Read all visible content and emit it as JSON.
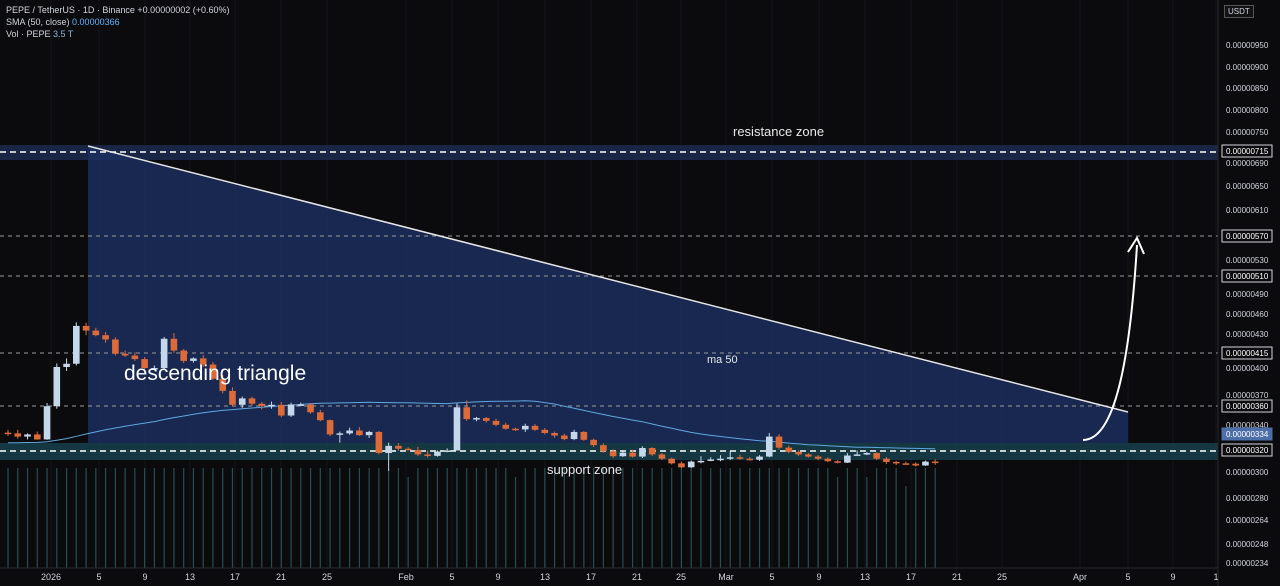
{
  "header": {
    "symbol": "PEPE / TetherUS · 1D · Binance",
    "change": "+0.00000002 (+0.60%)",
    "sma_label": "SMA (50, close)",
    "sma_value": "0.00000366",
    "vol_label": "Vol · PEPE",
    "vol_value": "3.5 T"
  },
  "currency": "USDT",
  "colors": {
    "background": "#0b0b0d",
    "up": "#c5d7ea",
    "down": "#dd6b3a",
    "triangle_fill": "#1c3160",
    "support_fill": "#163f4a",
    "sma": "#5fa8e0",
    "text": "#d1d4dc"
  },
  "annotations": {
    "resistance": "resistance zone",
    "support": "support zone",
    "pattern": "descending triangle",
    "ma": "ma 50"
  },
  "chart_data": {
    "type": "candlestick",
    "y_range": [
      3.3e-06,
      7.05e-06
    ],
    "price_ticks": [
      "0.00000950",
      "0.00000900",
      "0.00000850",
      "0.00000800",
      "0.00000750",
      "0.00000690",
      "0.00000650",
      "0.00000610",
      "0.00000530",
      "0.00000490",
      "0.00000460",
      "0.00000430",
      "0.00000400",
      "0.00000370",
      "0.00000340"
    ],
    "price_labels_boxed": [
      "0.00000715",
      "0.00000570",
      "0.00000510",
      "0.00000415",
      "0.00000360",
      "0.00000334",
      "0.00000320"
    ],
    "current_price": "0.00000334",
    "volume_ticks": [
      "0.00000300",
      "0.00000280",
      "0.00000264",
      "0.00000248",
      "0.00000234"
    ],
    "x_ticks": [
      "2026",
      "5",
      "9",
      "13",
      "17",
      "21",
      "25",
      "Feb",
      "5",
      "9",
      "13",
      "17",
      "21",
      "25",
      "Mar",
      "5",
      "9",
      "13",
      "17",
      "21",
      "25",
      "Apr",
      "5",
      "9",
      "1"
    ],
    "candles_ohlc": [
      [
        4.19e-06,
        4.27e-06,
        4.1e-06,
        4.17e-06
      ],
      [
        4.17e-06,
        4.27e-06,
        4.02e-06,
        4.08e-06
      ],
      [
        4.08e-06,
        4.17e-06,
        4e-06,
        4.14e-06
      ],
      [
        4.14e-06,
        4.22e-06,
        3.99e-06,
        4e-06
      ],
      [
        4e-06,
        5.02e-06,
        3.99e-06,
        4.93e-06
      ],
      [
        4.93e-06,
        6.13e-06,
        4.86e-06,
        6.03e-06
      ],
      [
        6.03e-06,
        6.27e-06,
        5.92e-06,
        6.12e-06
      ],
      [
        6.12e-06,
        7.28e-06,
        6.07e-06,
        7.18e-06
      ],
      [
        7.18e-06,
        7.27e-06,
        6.92e-06,
        7.05e-06
      ],
      [
        7.05e-06,
        7.13e-06,
        6.89e-06,
        6.92e-06
      ],
      [
        6.92e-06,
        7.01e-06,
        6.71e-06,
        6.8e-06
      ],
      [
        6.8e-06,
        6.86e-06,
        6.35e-06,
        6.4e-06
      ],
      [
        6.4e-06,
        6.49e-06,
        6.31e-06,
        6.35e-06
      ],
      [
        6.35e-06,
        6.44e-06,
        6.2e-06,
        6.25e-06
      ],
      [
        6.25e-06,
        6.31e-06,
        5.97e-06,
        6e-06
      ],
      [
        6e-06,
        6.07e-06,
        5.96e-06,
        6e-06
      ],
      [
        6e-06,
        6.87e-06,
        5.96e-06,
        6.82e-06
      ],
      [
        6.82e-06,
        6.98e-06,
        6.43e-06,
        6.49e-06
      ],
      [
        6.49e-06,
        6.53e-06,
        6.14e-06,
        6.2e-06
      ],
      [
        6.2e-06,
        6.3e-06,
        6.15e-06,
        6.27e-06
      ],
      [
        6.27e-06,
        6.36e-06,
        6.03e-06,
        6.1e-06
      ],
      [
        6.1e-06,
        6.17e-06,
        5.67e-06,
        5.7e-06
      ],
      [
        5.7e-06,
        5.8e-06,
        5.29e-06,
        5.36e-06
      ],
      [
        5.36e-06,
        5.46e-06,
        4.94e-06,
        4.97e-06
      ],
      [
        4.97e-06,
        5.2e-06,
        4.88e-06,
        5.15e-06
      ],
      [
        5.15e-06,
        5.2e-06,
        4.94e-06,
        5e-06
      ],
      [
        5e-06,
        5.05e-06,
        4.84e-06,
        4.94e-06
      ],
      [
        4.94e-06,
        5.06e-06,
        4.86e-06,
        4.97e-06
      ],
      [
        4.97e-06,
        5.05e-06,
        4.62e-06,
        4.67e-06
      ],
      [
        4.67e-06,
        5.03e-06,
        4.63e-06,
        4.98e-06
      ],
      [
        4.98e-06,
        5.03e-06,
        4.93e-06,
        4.98e-06
      ],
      [
        4.98e-06,
        5.02e-06,
        4.72e-06,
        4.76e-06
      ],
      [
        4.76e-06,
        4.83e-06,
        4.51e-06,
        4.54e-06
      ],
      [
        4.54e-06,
        4.56e-06,
        4.09e-06,
        4.14e-06
      ],
      [
        4.14e-06,
        4.22e-06,
        3.91e-06,
        4.17e-06
      ],
      [
        4.17e-06,
        4.33e-06,
        4.13e-06,
        4.25e-06
      ],
      [
        4.25e-06,
        4.35e-06,
        4.1e-06,
        4.12e-06
      ],
      [
        4.12e-06,
        4.24e-06,
        4.04e-06,
        4.21e-06
      ],
      [
        4.21e-06,
        4.24e-06,
        3.58e-06,
        3.62e-06
      ],
      [
        3.62e-06,
        3.91e-06,
        3.12e-06,
        3.82e-06
      ],
      [
        3.82e-06,
        3.9e-06,
        3.68e-06,
        3.74e-06
      ],
      [
        3.74e-06,
        3.78e-06,
        3.69e-06,
        3.7e-06
      ],
      [
        3.7e-06,
        3.79e-06,
        3.54e-06,
        3.58e-06
      ],
      [
        3.58e-06,
        3.69e-06,
        3.49e-06,
        3.54e-06
      ],
      [
        3.54e-06,
        3.69e-06,
        3.52e-06,
        3.66e-06
      ],
      [
        3.66e-06,
        3.75e-06,
        3.64e-06,
        3.69e-06
      ],
      [
        3.69e-06,
        5.01e-06,
        3.69e-06,
        4.9e-06
      ],
      [
        4.9e-06,
        5.09e-06,
        4.52e-06,
        4.57e-06
      ],
      [
        4.57e-06,
        4.63e-06,
        4.51e-06,
        4.6e-06
      ],
      [
        4.6e-06,
        4.63e-06,
        4.47e-06,
        4.52e-06
      ],
      [
        4.52e-06,
        4.58e-06,
        4.37e-06,
        4.41e-06
      ],
      [
        4.41e-06,
        4.47e-06,
        4.27e-06,
        4.3e-06
      ],
      [
        4.3e-06,
        4.33e-06,
        4.24e-06,
        4.28e-06
      ],
      [
        4.28e-06,
        4.44e-06,
        4.21e-06,
        4.38e-06
      ],
      [
        4.38e-06,
        4.43e-06,
        4.24e-06,
        4.27e-06
      ],
      [
        4.27e-06,
        4.32e-06,
        4.14e-06,
        4.18e-06
      ],
      [
        4.18e-06,
        4.22e-06,
        4.05e-06,
        4.11e-06
      ],
      [
        4.11e-06,
        4.16e-06,
        3.98e-06,
        4.01e-06
      ],
      [
        4.01e-06,
        4.27e-06,
        3.98e-06,
        4.21e-06
      ],
      [
        4.21e-06,
        4.23e-06,
        3.96e-06,
        3.99e-06
      ],
      [
        3.99e-06,
        4.02e-06,
        3.79e-06,
        3.84e-06
      ],
      [
        3.84e-06,
        3.89e-06,
        3.63e-06,
        3.67e-06
      ],
      [
        3.67e-06,
        3.72e-06,
        3.48e-06,
        3.53e-06
      ],
      [
        3.53e-06,
        3.66e-06,
        3.51e-06,
        3.63e-06
      ],
      [
        3.63e-06,
        3.71e-06,
        3.49e-06,
        3.52e-06
      ],
      [
        3.52e-06,
        3.81e-06,
        3.48e-06,
        3.76e-06
      ],
      [
        3.76e-06,
        3.78e-06,
        3.54e-06,
        3.58e-06
      ],
      [
        3.58e-06,
        3.62e-06,
        3.42e-06,
        3.46e-06
      ],
      [
        3.46e-06,
        3.49e-06,
        3.3e-06,
        3.33e-06
      ],
      [
        3.33e-06,
        3.38e-06,
        3.2e-06,
        3.22e-06
      ],
      [
        3.22e-06,
        3.41e-06,
        3.2e-06,
        3.38e-06
      ],
      [
        3.38e-06,
        3.53e-06,
        3.33e-06,
        3.4e-06
      ],
      [
        3.4e-06,
        3.5e-06,
        3.39e-06,
        3.44e-06
      ],
      [
        3.44e-06,
        3.56e-06,
        3.39e-06,
        3.46e-06
      ],
      [
        3.46e-06,
        3.67e-06,
        3.42e-06,
        3.5e-06
      ],
      [
        3.5e-06,
        3.57e-06,
        3.43e-06,
        3.46e-06
      ],
      [
        3.46e-06,
        3.51e-06,
        3.41e-06,
        3.43e-06
      ],
      [
        3.43e-06,
        3.56e-06,
        3.4e-06,
        3.52e-06
      ],
      [
        3.52e-06,
        4.18e-06,
        3.5e-06,
        4.08e-06
      ],
      [
        4.08e-06,
        4.15e-06,
        3.72e-06,
        3.77e-06
      ],
      [
        3.77e-06,
        3.83e-06,
        3.61e-06,
        3.65e-06
      ],
      [
        3.65e-06,
        3.69e-06,
        3.54e-06,
        3.58e-06
      ],
      [
        3.58e-06,
        3.62e-06,
        3.49e-06,
        3.52e-06
      ],
      [
        3.52e-06,
        3.56e-06,
        3.42e-06,
        3.46e-06
      ],
      [
        3.46e-06,
        3.5e-06,
        3.36e-06,
        3.39e-06
      ],
      [
        3.39e-06,
        3.42e-06,
        3.33e-06,
        3.35e-06
      ],
      [
        3.35e-06,
        3.62e-06,
        3.34e-06,
        3.55e-06
      ],
      [
        3.55e-06,
        3.69e-06,
        3.55e-06,
        3.58e-06
      ],
      [
        3.58e-06,
        3.65e-06,
        3.56e-06,
        3.62e-06
      ],
      [
        3.62e-06,
        3.64e-06,
        3.42e-06,
        3.46e-06
      ],
      [
        3.46e-06,
        3.51e-06,
        3.31e-06,
        3.37e-06
      ],
      [
        3.37e-06,
        3.4e-06,
        3.28e-06,
        3.33e-06
      ],
      [
        3.33e-06,
        3.38e-06,
        3.3e-06,
        3.32e-06
      ],
      [
        3.32e-06,
        3.36e-06,
        3.24e-06,
        3.27e-06
      ],
      [
        3.27e-06,
        3.41e-06,
        3.26e-06,
        3.38e-06
      ],
      [
        3.38e-06,
        3.44e-06,
        3.29e-06,
        3.34e-06
      ]
    ]
  }
}
